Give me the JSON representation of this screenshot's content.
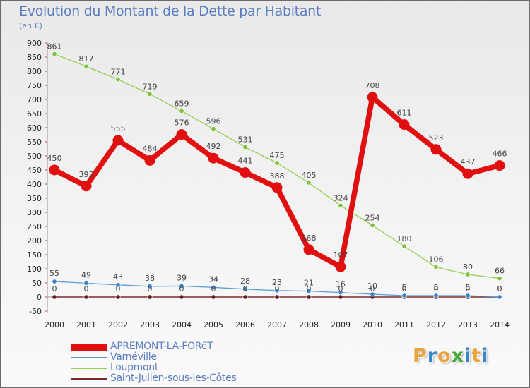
{
  "title": "Evolution du Montant de la Dette par Habitant",
  "subtitle": "(en €)",
  "logo": {
    "letters": [
      "P",
      "r",
      "o",
      "x",
      "i",
      "t",
      "i"
    ],
    "colors": [
      "#e8a33c",
      "#3b86c6",
      "#e8a33c",
      "#4aa83f",
      "#3b86c6",
      "#e8a33c",
      "#3b86c6"
    ]
  },
  "chart_data": {
    "type": "line",
    "title": "Evolution du Montant de la Dette par Habitant",
    "ylabel": "(en €)",
    "xlabel": "",
    "ylim": [
      -50,
      900
    ],
    "y_ticks": [
      -50,
      0,
      50,
      100,
      150,
      200,
      250,
      300,
      350,
      400,
      450,
      500,
      550,
      600,
      650,
      700,
      750,
      800,
      850,
      900
    ],
    "grid": false,
    "legend_position": "bottom-left",
    "x": [
      "2000",
      "2001",
      "2002",
      "2003",
      "2004",
      "2005",
      "2006",
      "2007",
      "2008",
      "2009",
      "2010",
      "2011",
      "2012",
      "2013",
      "2014"
    ],
    "series": [
      {
        "name": "Saint-Julien-sous-les-Côtes",
        "color": "#7a2b2b",
        "values": [
          0,
          0,
          0,
          0,
          0,
          0,
          0,
          0,
          0,
          0,
          0,
          0,
          0,
          0,
          0
        ]
      },
      {
        "name": "Varnéville",
        "color": "#5b9bd5",
        "values": [
          55,
          49,
          43,
          38,
          39,
          34,
          28,
          23,
          21,
          16,
          10,
          5,
          5,
          5,
          0
        ]
      },
      {
        "name": "Loupmont",
        "color": "#92d050",
        "values": [
          861,
          817,
          771,
          719,
          659,
          596,
          531,
          475,
          405,
          324,
          254,
          180,
          106,
          80,
          66
        ]
      },
      {
        "name": "APREMONT-LA-FORêT",
        "color": "#e01010",
        "values": [
          450,
          393,
          555,
          484,
          576,
          492,
          441,
          388,
          168,
          107,
          708,
          611,
          523,
          437,
          466
        ]
      }
    ]
  }
}
